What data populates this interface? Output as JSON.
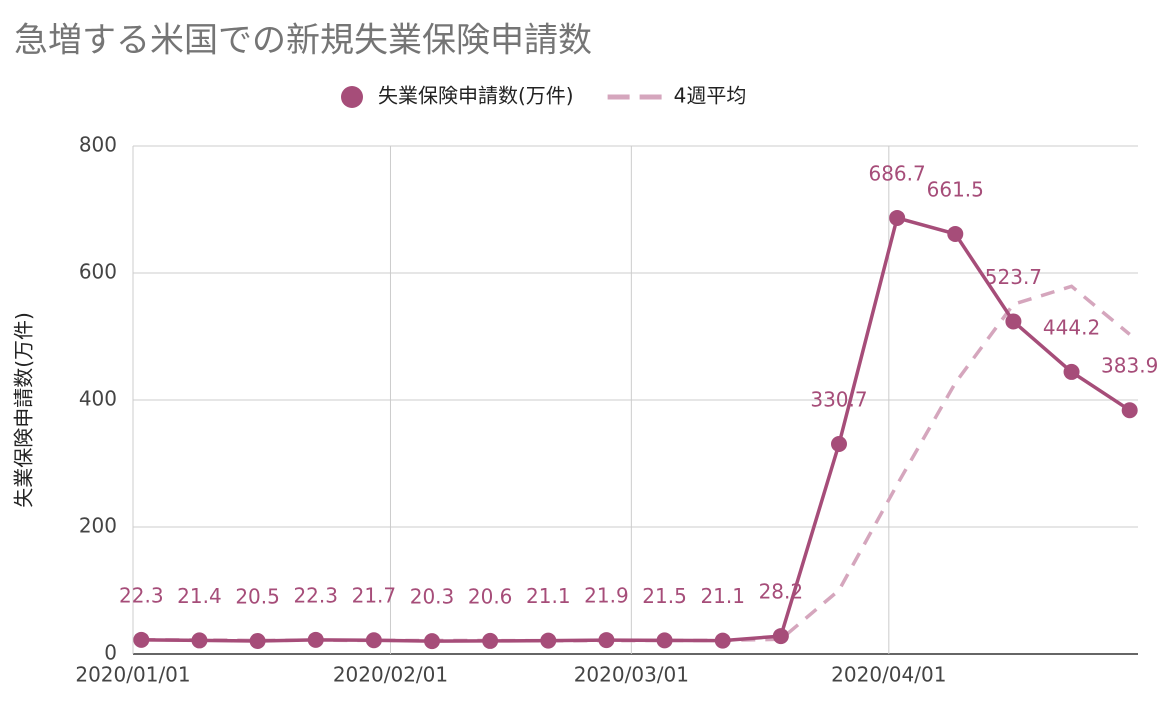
{
  "chart_data": {
    "type": "line",
    "title": "急増する米国での新規失業保険申請数",
    "y_label": "失業保険申請数(万件)",
    "x": [
      "2020-01-02",
      "2020-01-09",
      "2020-01-16",
      "2020-01-23",
      "2020-01-30",
      "2020-02-06",
      "2020-02-13",
      "2020-02-20",
      "2020-02-27",
      "2020-03-05",
      "2020-03-12",
      "2020-03-19",
      "2020-03-26",
      "2020-04-02",
      "2020-04-09",
      "2020-04-16",
      "2020-04-23",
      "2020-04-30"
    ],
    "series": [
      {
        "name": "失業保険申請数(万件)",
        "color": "#a64d79",
        "style": "solid",
        "markers": true,
        "values": [
          22.3,
          21.4,
          20.5,
          22.3,
          21.7,
          20.3,
          20.6,
          21.1,
          21.9,
          21.5,
          21.1,
          28.2,
          330.7,
          686.7,
          661.5,
          523.7,
          444.2,
          383.9
        ]
      },
      {
        "name": "4週平均",
        "color": "#d5a6bd",
        "style": "dashed",
        "markers": false,
        "values": [
          22.5,
          22.0,
          21.5,
          21.6,
          21.5,
          21.2,
          21.2,
          20.9,
          21.0,
          21.3,
          21.4,
          23.2,
          100.4,
          266.7,
          426.8,
          550.7,
          579.0,
          503.3
        ]
      }
    ],
    "xlim": [
      "2020-01-01",
      "2020-05-01"
    ],
    "xticks": [
      {
        "value": "2020-01-01",
        "label": "2020/01/01"
      },
      {
        "value": "2020-02-01",
        "label": "2020/02/01"
      },
      {
        "value": "2020-03-01",
        "label": "2020/03/01"
      },
      {
        "value": "2020-04-01",
        "label": "2020/04/01"
      }
    ],
    "ylim": [
      0,
      800
    ],
    "yticks": [
      0,
      200,
      400,
      600,
      800
    ],
    "grid": true,
    "legend": "top"
  }
}
